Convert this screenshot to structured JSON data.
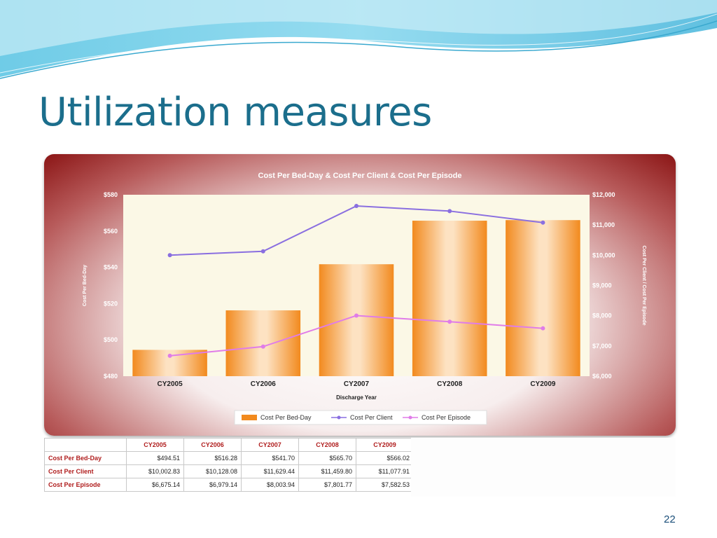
{
  "slide": {
    "title": "Utilization measures",
    "page_number": "22"
  },
  "chart_data": {
    "type": "bar",
    "title": "Cost Per Bed-Day & Cost Per Client & Cost Per Episode",
    "xlabel": "Discharge Year",
    "ylabel": "Cost Per Bed-Day",
    "y2label": "Cost Per Client / Cost Per Episode",
    "categories": [
      "CY2005",
      "CY2006",
      "CY2007",
      "CY2008",
      "CY2009"
    ],
    "ylim": [
      480,
      580
    ],
    "y2lim": [
      6000,
      12000
    ],
    "yticks": [
      "$480",
      "$500",
      "$520",
      "$540",
      "$560",
      "$580"
    ],
    "y2ticks": [
      "$6,000",
      "$7,000",
      "$8,000",
      "$9,000",
      "$10,000",
      "$11,000",
      "$12,000"
    ],
    "legend_position": "bottom",
    "series": [
      {
        "name": "Cost Per Bed-Day",
        "kind": "bar",
        "axis": "left",
        "color": "#f28a1e",
        "values": [
          494.51,
          516.28,
          541.7,
          565.7,
          566.02
        ]
      },
      {
        "name": "Cost Per Client",
        "kind": "line",
        "axis": "right",
        "color": "#8a6fe0",
        "values": [
          10002.83,
          10128.08,
          11629.44,
          11459.8,
          11077.91
        ]
      },
      {
        "name": "Cost Per Episode",
        "kind": "line",
        "axis": "right",
        "color": "#e07ce8",
        "values": [
          6675.14,
          6979.14,
          8003.94,
          7801.77,
          7582.53
        ]
      }
    ]
  },
  "table": {
    "headers": [
      "CY2005",
      "CY2006",
      "CY2007",
      "CY2008",
      "CY2009"
    ],
    "rows": [
      {
        "label": "Cost Per Bed-Day",
        "values": [
          "$494.51",
          "$516.28",
          "$541.70",
          "$565.70",
          "$566.02"
        ]
      },
      {
        "label": "Cost Per Client",
        "values": [
          "$10,002.83",
          "$10,128.08",
          "$11,629.44",
          "$11,459.80",
          "$11,077.91"
        ]
      },
      {
        "label": "Cost Per Episode",
        "values": [
          "$6,675.14",
          "$6,979.14",
          "$8,003.94",
          "$7,801.77",
          "$7,582.53"
        ]
      }
    ]
  }
}
